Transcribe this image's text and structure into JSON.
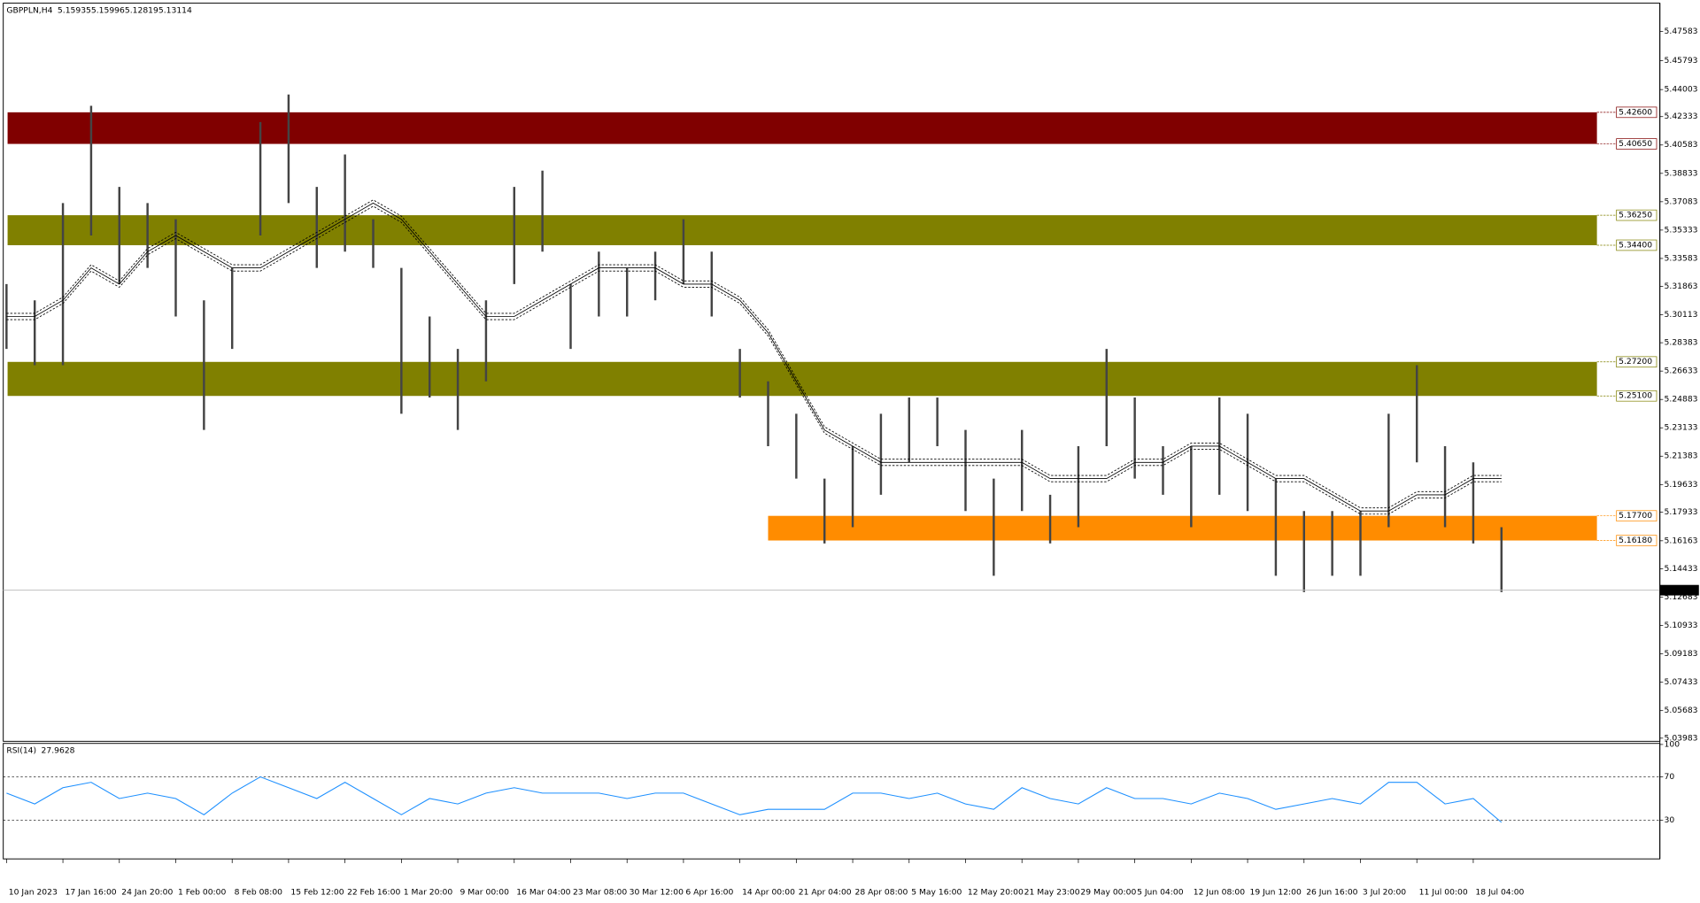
{
  "header": {
    "symbol": "GBPPLN,H4",
    "open": 5.15935,
    "high": 5.15996,
    "low": 5.12819,
    "close": 5.13114
  },
  "chart_data": [
    {
      "type": "ohlc",
      "ylim": [
        5.0379,
        5.4927
      ],
      "yticks": [
        5.47583,
        5.45793,
        5.44003,
        5.42333,
        5.40583,
        5.38833,
        5.37083,
        5.35333,
        5.33583,
        5.31863,
        5.30113,
        5.28383,
        5.26633,
        5.24883,
        5.23133,
        5.21383,
        5.19633,
        5.17933,
        5.16163,
        5.14433,
        5.12683,
        5.10933,
        5.09183,
        5.07433,
        5.05683,
        5.03983
      ],
      "categories": [
        "10 Jan 2023",
        null,
        "17 Jan 16:00",
        null,
        "24 Jan 20:00",
        null,
        "1 Feb 00:00",
        null,
        "8 Feb 08:00",
        null,
        "15 Feb 12:00",
        null,
        "22 Feb 16:00",
        null,
        "1 Mar 20:00",
        null,
        "9 Mar 00:00",
        null,
        "16 Mar 04:00",
        null,
        "23 Mar 08:00",
        null,
        "30 Mar 12:00",
        null,
        "6 Apr 16:00",
        null,
        "14 Apr 00:00",
        null,
        "21 Apr 04:00",
        null,
        "28 Apr 08:00",
        null,
        "5 May 16:00",
        null,
        "12 May 20:00",
        null,
        "21 May 23:00",
        null,
        "29 May 00:00",
        null,
        "5 Jun 04:00",
        null,
        "12 Jun 08:00",
        null,
        "19 Jun 12:00",
        null,
        "26 Jun 16:00",
        null,
        "3 Jul 20:00",
        null,
        "11 Jul 00:00",
        null,
        "18 Jul 04:00",
        null
      ],
      "high": [
        5.32,
        5.31,
        5.37,
        5.43,
        5.38,
        5.37,
        5.36,
        5.31,
        5.33,
        5.42,
        5.437,
        5.38,
        5.4,
        5.36,
        5.33,
        5.3,
        5.28,
        5.31,
        5.38,
        5.39,
        5.32,
        5.34,
        5.33,
        5.34,
        5.36,
        5.34,
        5.28,
        5.26,
        5.24,
        5.2,
        5.22,
        5.24,
        5.25,
        5.25,
        5.23,
        5.2,
        5.23,
        5.19,
        5.22,
        5.28,
        5.25,
        5.22,
        5.22,
        5.25,
        5.24,
        5.2,
        5.18,
        5.18,
        5.18,
        5.24,
        5.27,
        5.22,
        5.21,
        5.17
      ],
      "low": [
        5.28,
        5.27,
        5.27,
        5.35,
        5.32,
        5.33,
        5.3,
        5.23,
        5.28,
        5.35,
        5.37,
        5.33,
        5.34,
        5.33,
        5.24,
        5.25,
        5.23,
        5.26,
        5.32,
        5.34,
        5.28,
        5.3,
        5.3,
        5.31,
        5.32,
        5.3,
        5.25,
        5.22,
        5.2,
        5.16,
        5.17,
        5.19,
        5.21,
        5.22,
        5.18,
        5.14,
        5.18,
        5.16,
        5.17,
        5.22,
        5.2,
        5.19,
        5.17,
        5.19,
        5.18,
        5.14,
        5.13,
        5.14,
        5.14,
        5.17,
        5.21,
        5.17,
        5.16,
        5.13
      ],
      "ma": [
        5.3,
        5.3,
        5.31,
        5.33,
        5.32,
        5.34,
        5.35,
        5.34,
        5.33,
        5.33,
        5.34,
        5.35,
        5.36,
        5.37,
        5.36,
        5.34,
        5.32,
        5.3,
        5.3,
        5.31,
        5.32,
        5.33,
        5.33,
        5.33,
        5.32,
        5.32,
        5.31,
        5.29,
        5.26,
        5.23,
        5.22,
        5.21,
        5.21,
        5.21,
        5.21,
        5.21,
        5.21,
        5.2,
        5.2,
        5.2,
        5.21,
        5.21,
        5.22,
        5.22,
        5.21,
        5.2,
        5.2,
        5.19,
        5.18,
        5.18,
        5.19,
        5.19,
        5.2,
        5.2
      ],
      "zones": [
        {
          "high": 5.426,
          "low": 5.4065,
          "high_label": "5.42600",
          "low_label": "5.40650",
          "color": "#800000"
        },
        {
          "high": 5.3625,
          "low": 5.344,
          "high_label": "5.36250",
          "low_label": "5.34400",
          "color": "#808000"
        },
        {
          "high": 5.272,
          "low": 5.251,
          "high_label": "5.27200",
          "low_label": "5.25100",
          "color": "#808000"
        },
        {
          "high": 5.177,
          "low": 5.1618,
          "high_label": "5.17700",
          "low_label": "5.16180",
          "color": "#ff8c00"
        }
      ],
      "current": 5.13114
    },
    {
      "type": "rsi",
      "title": "RSI(14)",
      "last": 27.9628,
      "ylim": [
        0,
        100
      ],
      "yticks": [
        100,
        70,
        30
      ],
      "levels": [
        70,
        30
      ],
      "color": "#1e90ff",
      "values": [
        55,
        45,
        60,
        65,
        50,
        55,
        50,
        35,
        55,
        70,
        60,
        50,
        65,
        50,
        35,
        50,
        45,
        55,
        60,
        55,
        55,
        55,
        50,
        55,
        55,
        45,
        35,
        40,
        40,
        40,
        55,
        55,
        50,
        55,
        45,
        40,
        60,
        50,
        45,
        60,
        50,
        50,
        45,
        55,
        50,
        40,
        45,
        50,
        45,
        65,
        65,
        45,
        50,
        28
      ]
    }
  ]
}
